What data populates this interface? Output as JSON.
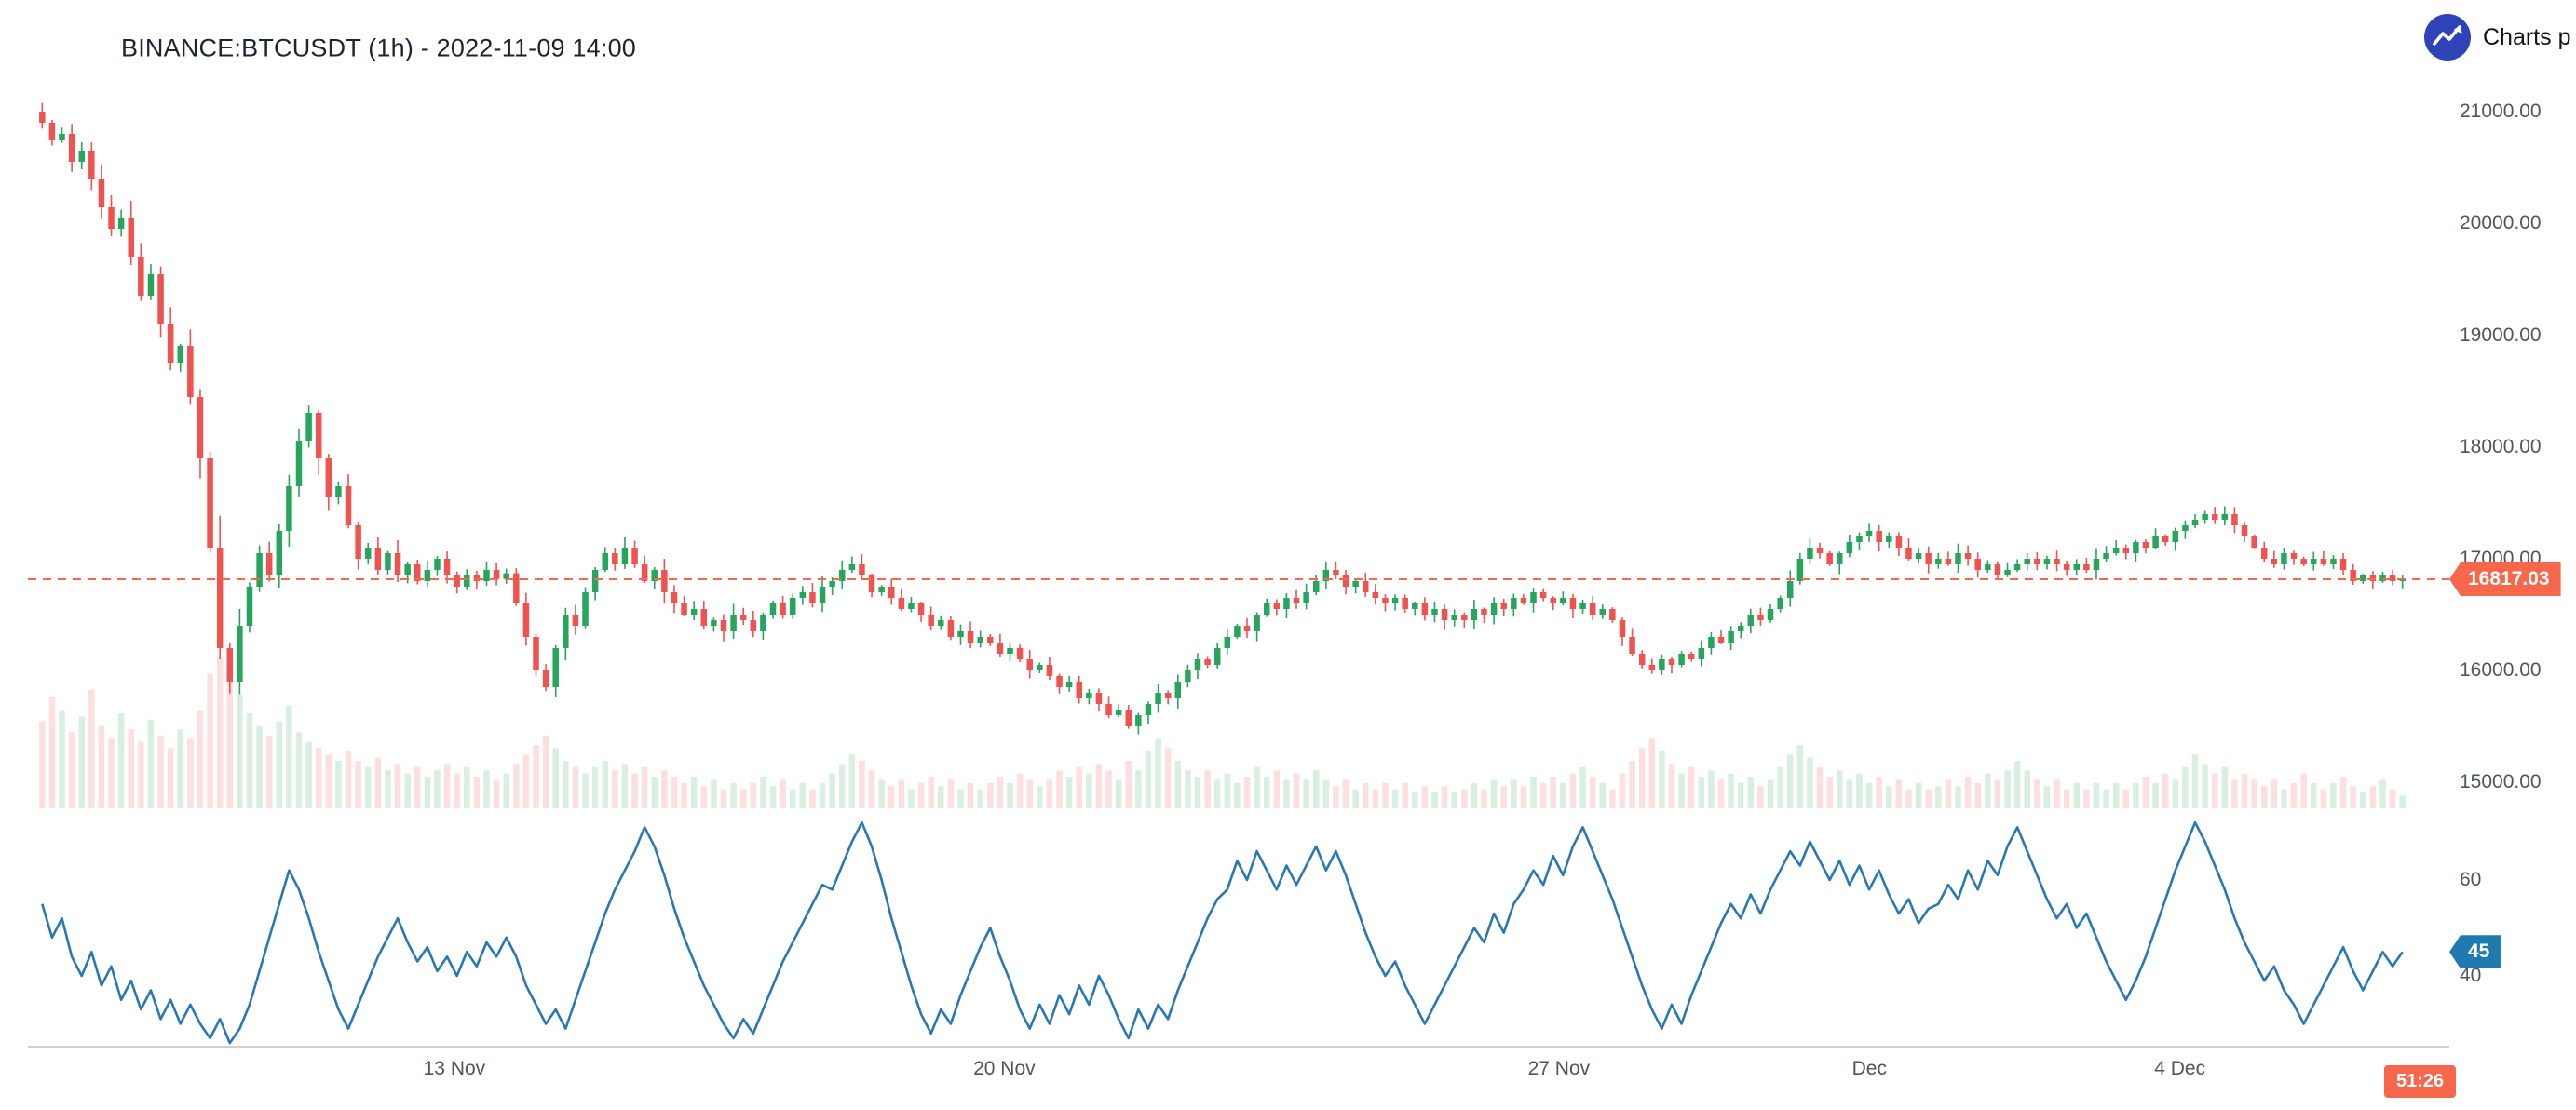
{
  "header": {
    "title": "BINANCE:BTCUSDT (1h) - 2022-11-09 14:00",
    "attribution": "Charts p"
  },
  "colors": {
    "up": "#26a65d",
    "down": "#ef5350",
    "volume_up": "rgba(38,166,93,0.18)",
    "volume_down": "rgba(239,83,80,0.18)",
    "price_line": "#f7674b",
    "price_badge_bg": "#f7674b",
    "countdown_badge_bg": "#f7674b",
    "rsi_line": "#2878b4",
    "rsi_badge_bg": "#1f7ab0",
    "axis_text": "#4e5460",
    "axis_line": "#ccd0d6",
    "logo_bg": "#2f43b8",
    "title_text": "#1c2333"
  },
  "price_scale": {
    "ticks": [
      "21000.00",
      "20000.00",
      "19000.00",
      "18000.00",
      "17000.00",
      "16000.00",
      "15000.00"
    ]
  },
  "time_scale": {
    "labels": [
      {
        "label": "13 Nov",
        "pos": 0.176
      },
      {
        "label": "20 Nov",
        "pos": 0.408
      },
      {
        "label": "27 Nov",
        "pos": 0.642
      },
      {
        "label": "Dec",
        "pos": 0.773
      },
      {
        "label": "4 Dec",
        "pos": 0.904
      }
    ]
  },
  "last_price": {
    "value": "16817.03",
    "numeric": 16817.03
  },
  "indicator": {
    "ticks": [
      "60",
      "40"
    ],
    "last_value": "45",
    "numeric": 45
  },
  "countdown": "51:26",
  "chart_data": {
    "type": "candlestick",
    "title": "BINANCE:BTCUSDT (1h) - 2022-11-09 14:00",
    "symbol": "BINANCE:BTCUSDT",
    "interval": "1h",
    "panes": [
      "price+volume",
      "oscillator"
    ],
    "ylim": [
      14800,
      21400
    ],
    "oscillator_range": [
      25,
      75
    ],
    "last_price": 16817.03,
    "first_open": 21000,
    "closes": [
      20900,
      20750,
      20800,
      20550,
      20650,
      20400,
      20150,
      19950,
      20050,
      19700,
      19350,
      19550,
      19100,
      18750,
      18900,
      18450,
      17900,
      17100,
      16200,
      15900,
      16400,
      16750,
      17050,
      16850,
      17250,
      17650,
      18050,
      18300,
      17900,
      17550,
      17650,
      17300,
      17000,
      17100,
      16900,
      17050,
      16850,
      16950,
      16800,
      16900,
      17000,
      16850,
      16750,
      16850,
      16800,
      16900,
      16820,
      16870,
      16600,
      16300,
      16000,
      15850,
      16200,
      16500,
      16400,
      16700,
      16900,
      17050,
      16950,
      17100,
      16950,
      16800,
      16900,
      16700,
      16600,
      16500,
      16550,
      16400,
      16450,
      16350,
      16500,
      16450,
      16350,
      16500,
      16600,
      16500,
      16650,
      16700,
      16600,
      16750,
      16800,
      16900,
      16950,
      16850,
      16700,
      16750,
      16650,
      16550,
      16600,
      16500,
      16400,
      16450,
      16300,
      16350,
      16250,
      16300,
      16250,
      16150,
      16200,
      16100,
      16000,
      16050,
      15950,
      15850,
      15900,
      15750,
      15800,
      15700,
      15600,
      15650,
      15500,
      15600,
      15700,
      15800,
      15750,
      15900,
      16000,
      16100,
      16050,
      16200,
      16300,
      16400,
      16350,
      16500,
      16600,
      16550,
      16650,
      16600,
      16700,
      16800,
      16900,
      16850,
      16750,
      16800,
      16700,
      16650,
      16600,
      16650,
      16550,
      16600,
      16500,
      16550,
      16450,
      16500,
      16450,
      16550,
      16500,
      16600,
      16550,
      16650,
      16600,
      16700,
      16650,
      16600,
      16650,
      16550,
      16600,
      16500,
      16550,
      16450,
      16300,
      16150,
      16050,
      16000,
      16100,
      16050,
      16150,
      16100,
      16200,
      16300,
      16250,
      16350,
      16400,
      16500,
      16450,
      16550,
      16650,
      16800,
      17000,
      17100,
      17050,
      16950,
      17050,
      17150,
      17200,
      17250,
      17150,
      17200,
      17100,
      17000,
      17050,
      16950,
      17000,
      16950,
      17050,
      17000,
      16900,
      16950,
      16850,
      16900,
      16950,
      17000,
      16950,
      17000,
      16950,
      16900,
      16950,
      16900,
      17000,
      17050,
      17100,
      17050,
      17150,
      17100,
      17200,
      17150,
      17250,
      17300,
      17350,
      17400,
      17350,
      17400,
      17300,
      17200,
      17100,
      17000,
      16950,
      17050,
      17000,
      16950,
      17000,
      16950,
      17000,
      16900,
      16800,
      16850,
      16800,
      16850,
      16800,
      16817.03
    ],
    "volumes": [
      55,
      70,
      62,
      48,
      58,
      75,
      52,
      44,
      60,
      50,
      42,
      56,
      46,
      38,
      50,
      44,
      62,
      85,
      95,
      88,
      72,
      60,
      52,
      46,
      55,
      65,
      48,
      42,
      38,
      34,
      30,
      36,
      30,
      26,
      32,
      24,
      28,
      22,
      26,
      20,
      24,
      28,
      22,
      26,
      20,
      24,
      18,
      22,
      28,
      34,
      40,
      46,
      38,
      30,
      26,
      22,
      26,
      30,
      24,
      28,
      22,
      26,
      20,
      24,
      20,
      16,
      20,
      14,
      18,
      12,
      16,
      12,
      16,
      20,
      14,
      18,
      12,
      16,
      12,
      16,
      22,
      28,
      34,
      30,
      24,
      18,
      14,
      18,
      12,
      16,
      20,
      14,
      18,
      12,
      16,
      12,
      16,
      20,
      16,
      22,
      18,
      14,
      18,
      24,
      20,
      26,
      22,
      28,
      24,
      18,
      30,
      24,
      36,
      44,
      38,
      30,
      24,
      20,
      24,
      18,
      22,
      16,
      20,
      26,
      20,
      24,
      18,
      22,
      18,
      24,
      18,
      14,
      18,
      12,
      16,
      12,
      16,
      12,
      16,
      10,
      14,
      10,
      14,
      10,
      12,
      16,
      12,
      18,
      14,
      18,
      14,
      20,
      16,
      20,
      16,
      22,
      26,
      20,
      16,
      12,
      22,
      30,
      38,
      44,
      36,
      28,
      22,
      26,
      20,
      24,
      18,
      22,
      16,
      20,
      14,
      18,
      26,
      34,
      40,
      32,
      26,
      20,
      24,
      18,
      22,
      16,
      20,
      14,
      18,
      12,
      16,
      12,
      14,
      18,
      14,
      20,
      16,
      22,
      18,
      24,
      30,
      24,
      18,
      14,
      18,
      12,
      16,
      12,
      16,
      12,
      16,
      12,
      16,
      20,
      16,
      22,
      18,
      26,
      34,
      28,
      22,
      26,
      18,
      22,
      18,
      14,
      18,
      12,
      16,
      22,
      16,
      12,
      16,
      20,
      14,
      10,
      14,
      18,
      12,
      8
    ],
    "oscillator": [
      55,
      48,
      52,
      44,
      40,
      45,
      38,
      42,
      35,
      39,
      33,
      37,
      31,
      35,
      30,
      34,
      30,
      27,
      31,
      26,
      29,
      34,
      41,
      48,
      55,
      62,
      58,
      52,
      45,
      39,
      33,
      29,
      34,
      39,
      44,
      48,
      52,
      47,
      43,
      46,
      41,
      44,
      40,
      45,
      42,
      47,
      44,
      48,
      44,
      38,
      34,
      30,
      33,
      29,
      35,
      41,
      47,
      53,
      58,
      62,
      66,
      71,
      67,
      61,
      54,
      48,
      43,
      38,
      34,
      30,
      27,
      31,
      28,
      33,
      38,
      43,
      47,
      51,
      55,
      59,
      58,
      63,
      68,
      72,
      67,
      60,
      52,
      45,
      38,
      32,
      28,
      33,
      30,
      36,
      41,
      46,
      50,
      44,
      39,
      33,
      29,
      34,
      30,
      36,
      32,
      38,
      34,
      40,
      36,
      31,
      27,
      33,
      29,
      34,
      31,
      37,
      42,
      47,
      52,
      56,
      58,
      64,
      60,
      66,
      62,
      58,
      63,
      59,
      63,
      67,
      62,
      66,
      61,
      55,
      49,
      44,
      40,
      43,
      38,
      34,
      30,
      34,
      38,
      42,
      46,
      50,
      47,
      53,
      49,
      55,
      58,
      62,
      59,
      65,
      61,
      67,
      71,
      66,
      61,
      56,
      50,
      44,
      38,
      33,
      29,
      34,
      30,
      36,
      41,
      46,
      51,
      55,
      52,
      57,
      53,
      58,
      62,
      66,
      63,
      68,
      64,
      60,
      64,
      59,
      63,
      58,
      62,
      57,
      53,
      56,
      51,
      54,
      55,
      59,
      56,
      62,
      58,
      64,
      61,
      67,
      71,
      66,
      61,
      56,
      52,
      55,
      50,
      53,
      48,
      43,
      39,
      35,
      39,
      44,
      50,
      56,
      62,
      67,
      72,
      68,
      63,
      58,
      52,
      47,
      43,
      39,
      42,
      37,
      34,
      30,
      34,
      38,
      42,
      46,
      41,
      37,
      41,
      45,
      42,
      45
    ]
  }
}
